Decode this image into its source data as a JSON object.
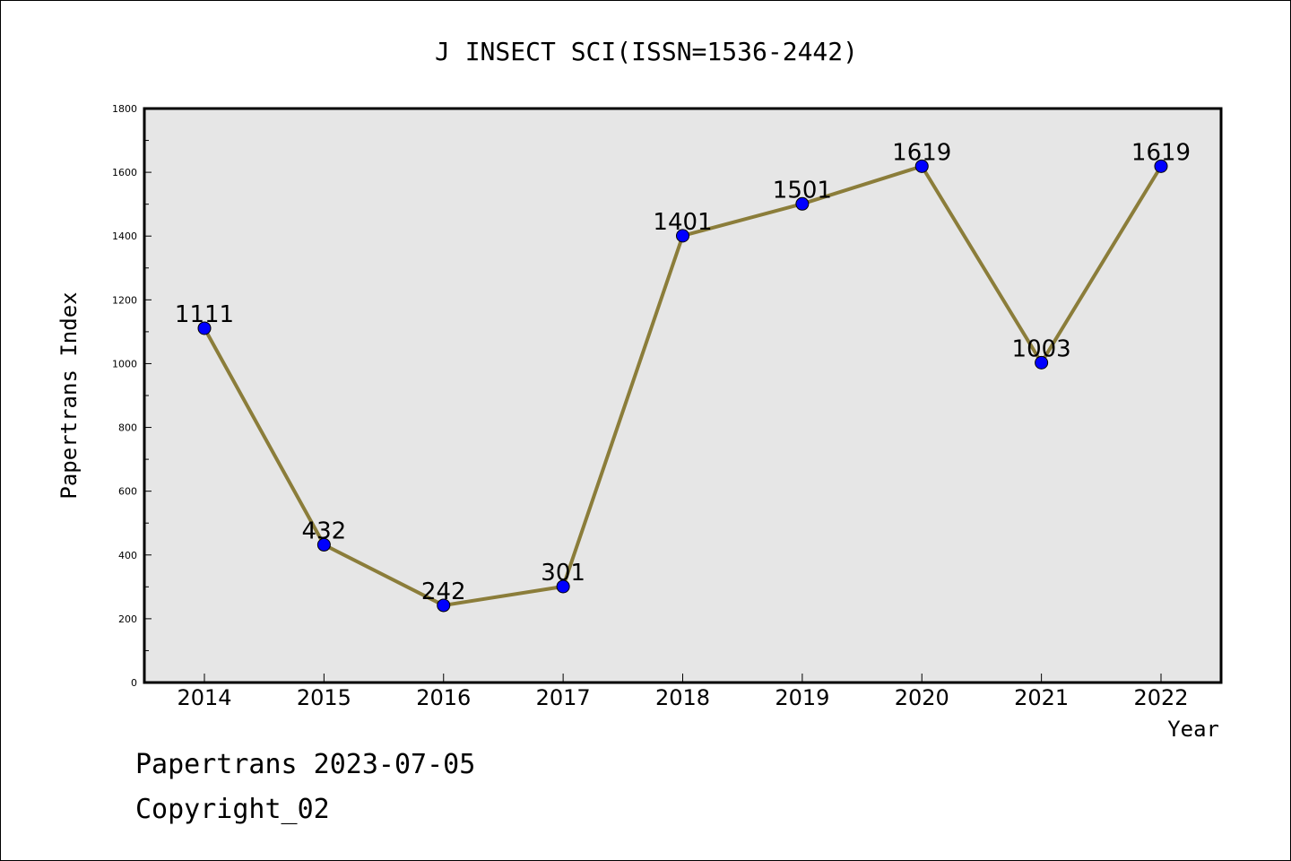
{
  "chart_data": {
    "type": "line",
    "title": "J INSECT SCI(ISSN=1536-2442)",
    "xlabel": "Year",
    "ylabel": "Papertrans Index",
    "categories": [
      "2014",
      "2015",
      "2016",
      "2017",
      "2018",
      "2019",
      "2020",
      "2021",
      "2022"
    ],
    "values": [
      1111,
      432,
      242,
      301,
      1401,
      1501,
      1619,
      1003,
      1619
    ],
    "data_labels": [
      "1111",
      "432",
      "242",
      "301",
      "1401",
      "1501",
      "1619",
      "1003",
      "1619"
    ],
    "ylim": [
      0,
      1800
    ],
    "yticks": [
      "0",
      "200",
      "400",
      "600",
      "800",
      "1000",
      "1200",
      "1400",
      "1600",
      "1800"
    ],
    "grid": false,
    "line_color": "#8b7d3a",
    "marker_color": "#0000ff",
    "plot_background": "#e6e6e6"
  },
  "footer": {
    "line1": "Papertrans 2023-07-05",
    "line2": "Copyright_02"
  }
}
